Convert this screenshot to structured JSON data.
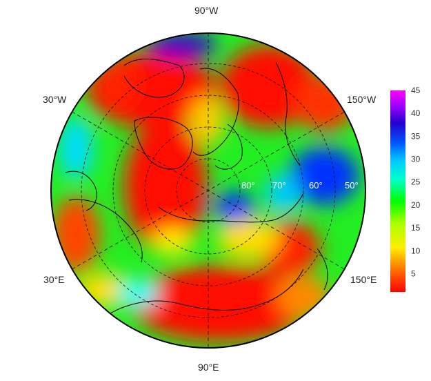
{
  "map": {
    "projection": "north-polar-stereographic",
    "longitude_labels": {
      "top": "90°W",
      "bottom": "90°E",
      "left_top": "30°W",
      "right_top": "150°W",
      "left_bottom": "30°E",
      "right_bottom": "150°E"
    },
    "latitude_labels": [
      "80°",
      "70°",
      "60°",
      "50°"
    ],
    "colormap": [
      "#ff0000",
      "#ffaa00",
      "#ffff00",
      "#00ff00",
      "#00ffff",
      "#0033ff",
      "#7f00ff",
      "#ff00ff"
    ]
  },
  "colorbar": {
    "min": 1,
    "max": 45,
    "ticks": [
      {
        "value": 5,
        "label": "5"
      },
      {
        "value": 10,
        "label": "10"
      },
      {
        "value": 15,
        "label": "15"
      },
      {
        "value": 20,
        "label": "20"
      },
      {
        "value": 25,
        "label": "25"
      },
      {
        "value": 30,
        "label": "30"
      },
      {
        "value": 35,
        "label": "35"
      },
      {
        "value": 40,
        "label": "40"
      },
      {
        "value": 45,
        "label": "45"
      }
    ]
  }
}
